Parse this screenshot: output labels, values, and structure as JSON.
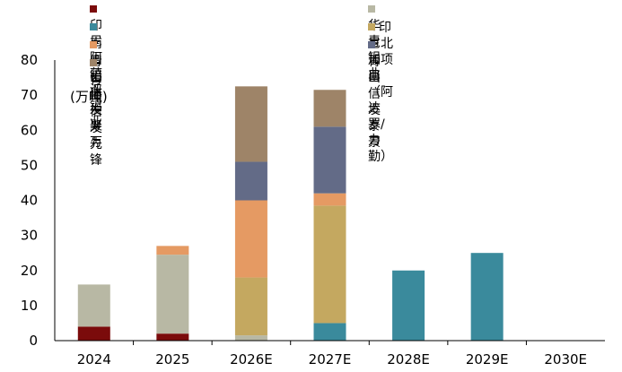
{
  "chart_data": {
    "type": "bar",
    "stacked": true,
    "categories": [
      "2024",
      "2025",
      "2026E",
      "2027E",
      "2028E",
      "2029E",
      "2030E"
    ],
    "unit_label": "(万吨)",
    "ylim": [
      0,
      80
    ],
    "yticks": [
      "0",
      "10",
      "20",
      "30",
      "40",
      "50",
      "60",
      "70",
      "80"
    ],
    "series": [
      {
        "name": "印尼阿萨汉铝业",
        "color": "#7b0b0b",
        "values": [
          4,
          2,
          0,
          0,
          0,
          0,
          0
        ]
      },
      {
        "name": "华青铝业",
        "color": "#b8b8a4",
        "values": [
          12,
          22.5,
          1.5,
          0,
          0,
          0,
          0
        ]
      },
      {
        "name": "南山铝业",
        "color": "#3a8a9c",
        "values": [
          0,
          0,
          0,
          5,
          20,
          25,
          0
        ]
      },
      {
        "name": "印尼北加项目（阿达罗/力勤）",
        "color": "#c4a860",
        "values": [
          0,
          0,
          16.5,
          33.5,
          0,
          0,
          0
        ]
      },
      {
        "name": "青山信发聚万",
        "color": "#e59a63",
        "values": [
          0,
          2.5,
          22,
          3.5,
          0,
          0,
          0
        ]
      },
      {
        "name": "青山信发泰景",
        "color": "#636b87",
        "values": [
          0,
          0,
          11,
          19,
          0,
          0,
          0
        ]
      },
      {
        "name": "青山信发先锋",
        "color": "#9e8468",
        "values": [
          0,
          0,
          21.5,
          10.5,
          0,
          0,
          0
        ]
      }
    ]
  }
}
